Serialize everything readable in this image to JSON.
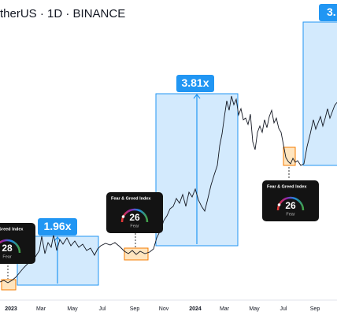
{
  "header": {
    "title": "therUS · 1D · BINANCE"
  },
  "annotations": [
    {
      "label": "1.96x"
    },
    {
      "label": "3.81x"
    },
    {
      "label": "3."
    }
  ],
  "cards": [
    {
      "title": "Fear & Greed Index",
      "value": 28,
      "label": "Fear"
    },
    {
      "title": "Fear & Greed Index",
      "value": 26,
      "label": "Fear"
    },
    {
      "title": "Fear & Greed Index",
      "value": 26,
      "label": "Fear"
    }
  ],
  "x_axis": {
    "labels": [
      "2023",
      "Mar",
      "May",
      "Jul",
      "Sep",
      "Nov",
      "2024",
      "Mar",
      "May",
      "Jul",
      "Sep"
    ]
  }
}
